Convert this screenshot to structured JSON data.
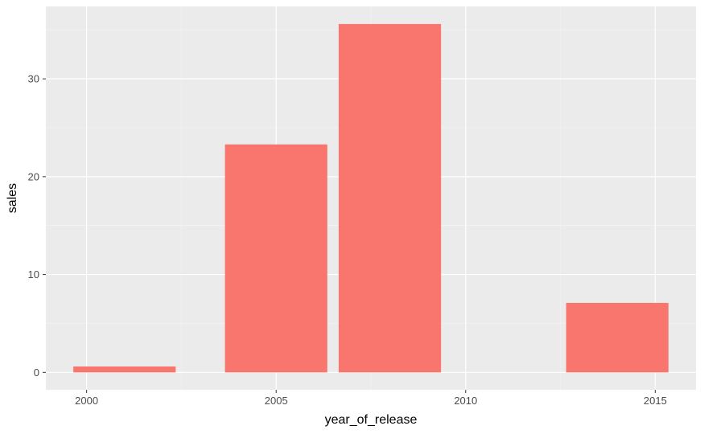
{
  "chart_data": {
    "type": "bar",
    "title": "",
    "xlabel": "year_of_release",
    "ylabel": "sales",
    "x_ticks": [
      2000,
      2005,
      2010,
      2015
    ],
    "y_ticks": [
      0,
      10,
      20,
      30
    ],
    "xlim": [
      1998.925,
      2016.075
    ],
    "ylim": [
      -1.78,
      37.4
    ],
    "bar_width_years": 2.7,
    "bars": [
      {
        "x": 2001.0,
        "value": 0.6
      },
      {
        "x": 2005.0,
        "value": 23.3
      },
      {
        "x": 2008.0,
        "value": 35.6
      },
      {
        "x": 2014.0,
        "value": 7.1
      }
    ],
    "grid": true,
    "legend": "none",
    "colors": {
      "bar": "#F8766D",
      "panel_background": "#EBEBEB",
      "grid_major": "#FFFFFF",
      "grid_minor": "#F5F5F5",
      "tick_text": "#4D4D4D",
      "tick_mark": "#333333"
    }
  }
}
